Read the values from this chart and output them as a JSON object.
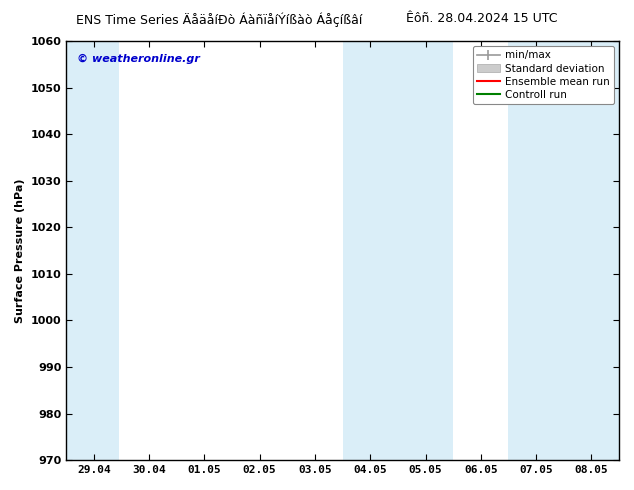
{
  "title_left": "ENS Time Series ÄåäåíÐò ÁàñïåíÝíßàò Áåçíßâí",
  "title_right": "Êôñ. 28.04.2024 15 UTC",
  "ylabel": "Surface Pressure (hPa)",
  "ylim": [
    970,
    1060
  ],
  "yticks": [
    970,
    980,
    990,
    1000,
    1010,
    1020,
    1030,
    1040,
    1050,
    1060
  ],
  "xtick_labels": [
    "29.04",
    "30.04",
    "01.05",
    "02.05",
    "03.05",
    "04.05",
    "05.05",
    "06.05",
    "07.05",
    "08.05"
  ],
  "background_color": "#ffffff",
  "plot_bg_color": "#ffffff",
  "band_color": "#daeef8",
  "legend_labels": [
    "min/max",
    "Standard deviation",
    "Ensemble mean run",
    "Controll run"
  ],
  "legend_colors": [
    "#aaaaaa",
    "#cccccc",
    "#ff0000",
    "#008000"
  ],
  "watermark": "© weatheronline.gr",
  "watermark_color": "#0000cc",
  "border_color": "#000000",
  "tick_color": "#000000",
  "font_size": 8,
  "title_font_size": 9
}
